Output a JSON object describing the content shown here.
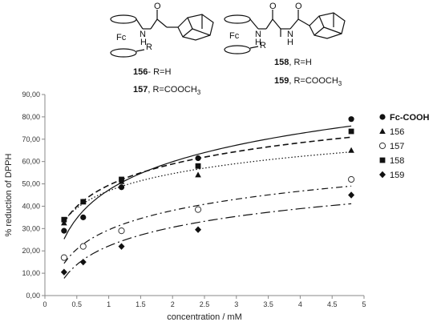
{
  "structures": {
    "fc_label_1": "Fc",
    "fc_label_2": "Fc",
    "r_label_1": "R",
    "r_label_2": "R",
    "nh_label_1": "N",
    "h_label_1": "H",
    "o_label_1": "O",
    "n_label_2": "N",
    "h_label_2": "H",
    "n_label_3": "N",
    "h_label_3": "H",
    "o_label_2": "O",
    "o_label_3": "O",
    "cmpd_156_num": "156",
    "cmpd_156_rest": "- R=H",
    "cmpd_157_num": "157",
    "cmpd_157_rest": ", R=COOCH",
    "cmpd_157_sub": "3",
    "cmpd_158_num": "158",
    "cmpd_158_rest": ", R=H",
    "cmpd_159_num": "159",
    "cmpd_159_rest": ", R=COOCH",
    "cmpd_159_sub": "3"
  },
  "chart_data": {
    "type": "scatter",
    "xlabel": "concentration / mM",
    "ylabel": "% reduction of DPPH",
    "xlim": [
      0,
      5
    ],
    "ylim": [
      0,
      90
    ],
    "x_ticks": [
      0,
      0.5,
      1,
      1.5,
      2,
      2.5,
      3,
      3.5,
      4,
      4.5,
      5
    ],
    "x_tick_labels": [
      "0",
      "0.5",
      "1",
      "1.5",
      "2",
      "2.5",
      "3",
      "3.5",
      "4",
      "4.5",
      "5"
    ],
    "y_ticks": [
      0,
      10,
      20,
      30,
      40,
      50,
      60,
      70,
      80,
      90
    ],
    "y_tick_labels": [
      "0,00",
      "10,00",
      "20,00",
      "30,00",
      "40,00",
      "50,00",
      "60,00",
      "70,00",
      "80,00",
      "90,00"
    ],
    "grid": false,
    "legend_position": "right",
    "trendline": "logarithmic",
    "series": [
      {
        "name": "Fc-COOH",
        "marker": "filled-circle",
        "line": "solid",
        "x": [
          0.3,
          0.6,
          1.2,
          2.4,
          4.8
        ],
        "y": [
          29,
          35,
          48.5,
          61.5,
          79
        ]
      },
      {
        "name": "156",
        "marker": "filled-triangle",
        "line": "dotted",
        "x": [
          0.3,
          0.6,
          1.2,
          2.4,
          4.8
        ],
        "y": [
          32.5,
          42,
          51,
          54,
          65
        ]
      },
      {
        "name": "157",
        "marker": "open-circle",
        "line": "dash-dot",
        "x": [
          0.3,
          0.6,
          1.2,
          2.4,
          4.8
        ],
        "y": [
          17,
          22,
          29,
          38.5,
          52
        ]
      },
      {
        "name": "158",
        "marker": "filled-square",
        "line": "dashed",
        "x": [
          0.3,
          0.6,
          1.2,
          2.4,
          4.8
        ],
        "y": [
          34,
          42,
          52,
          58,
          73.5
        ]
      },
      {
        "name": "159",
        "marker": "filled-diamond",
        "line": "long-dash-dot",
        "x": [
          0.3,
          0.6,
          1.2,
          2.4,
          4.8
        ],
        "y": [
          10.5,
          15,
          22,
          29.5,
          45
        ]
      }
    ]
  }
}
